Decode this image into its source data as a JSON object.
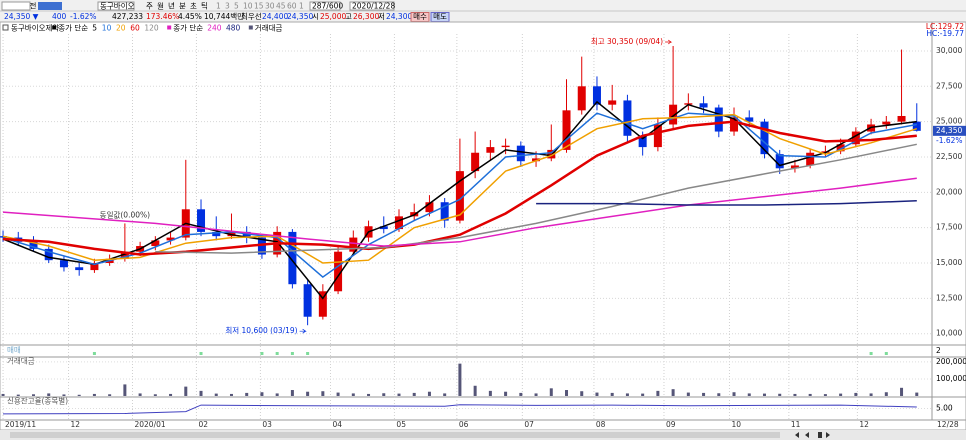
{
  "toolbar": {
    "row1": [
      "전",
      "동구바이오",
      "주",
      "월",
      "년",
      "분",
      "초",
      "틱",
      "1",
      "3",
      "5",
      "10",
      "15",
      "30",
      "45",
      "60",
      "1",
      "287/600",
      "2020/12/28"
    ],
    "row2": [
      "24,350 ▼",
      "400",
      "-1.62%",
      "427,233",
      "173.46%",
      "4.45%",
      "10,744백만",
      "최우선",
      "24,400",
      "24,350",
      "시",
      "25,000",
      "고",
      "26,300",
      "저",
      "24,300",
      "매수",
      "매도"
    ]
  },
  "chart_data": {
    "type": "candlestick",
    "title": "동구바이오제약",
    "legend_groups": [
      "종가 단순",
      "종가 단순"
    ],
    "volume_legend": "거래대금",
    "scale_labels": [
      "LC:129.72",
      "HC:-19.77"
    ],
    "up_color": "#e00000",
    "down_color": "#0030e0",
    "candles": [
      [
        16900,
        17300,
        16500,
        16800
      ],
      [
        16800,
        17200,
        16200,
        16500
      ],
      [
        16500,
        16900,
        15800,
        16000
      ],
      [
        16000,
        16300,
        15000,
        15200
      ],
      [
        15200,
        15500,
        14400,
        14700
      ],
      [
        14700,
        15000,
        14100,
        14500
      ],
      [
        14500,
        15300,
        14300,
        15000
      ],
      [
        15000,
        15600,
        14800,
        15300
      ],
      [
        15300,
        17800,
        15100,
        15800
      ],
      [
        15800,
        16500,
        15500,
        16200
      ],
      [
        16200,
        16900,
        15900,
        16600
      ],
      [
        16600,
        17200,
        16300,
        16800
      ],
      [
        16800,
        22300,
        16600,
        18800
      ],
      [
        18800,
        19500,
        16900,
        17200
      ],
      [
        17200,
        18300,
        16600,
        16900
      ],
      [
        16900,
        18500,
        16700,
        17200
      ],
      [
        17200,
        17600,
        16400,
        16800
      ],
      [
        16800,
        17000,
        15300,
        15600
      ],
      [
        15600,
        17600,
        15400,
        17200
      ],
      [
        17200,
        17400,
        13200,
        13500
      ],
      [
        13500,
        13800,
        10600,
        11200
      ],
      [
        11200,
        13500,
        11000,
        13000
      ],
      [
        13000,
        16200,
        12800,
        15800
      ],
      [
        15800,
        17300,
        15500,
        16800
      ],
      [
        16800,
        18000,
        16500,
        17600
      ],
      [
        17600,
        18300,
        17100,
        17400
      ],
      [
        17400,
        18800,
        17200,
        18300
      ],
      [
        18300,
        19200,
        18000,
        18600
      ],
      [
        18600,
        19800,
        18300,
        19300
      ],
      [
        19300,
        19600,
        17500,
        18000
      ],
      [
        18000,
        23800,
        17800,
        21500
      ],
      [
        21500,
        24300,
        21000,
        22800
      ],
      [
        22800,
        23700,
        22300,
        23200
      ],
      [
        23200,
        23800,
        22700,
        23300
      ],
      [
        23300,
        23600,
        21800,
        22200
      ],
      [
        22200,
        22900,
        21800,
        22400
      ],
      [
        22400,
        24800,
        22200,
        23000
      ],
      [
        23000,
        28000,
        22800,
        25800
      ],
      [
        25800,
        29600,
        25500,
        27500
      ],
      [
        27500,
        28200,
        25800,
        26200
      ],
      [
        26200,
        27600,
        25800,
        26500
      ],
      [
        26500,
        26900,
        23500,
        24000
      ],
      [
        24000,
        24300,
        22600,
        23200
      ],
      [
        23200,
        25300,
        22900,
        24800
      ],
      [
        24800,
        30350,
        24500,
        26200
      ],
      [
        26200,
        27000,
        25800,
        26300
      ],
      [
        26300,
        26800,
        25600,
        26000
      ],
      [
        26000,
        26200,
        23900,
        24300
      ],
      [
        24300,
        26000,
        24000,
        25300
      ],
      [
        25300,
        25800,
        24600,
        25000
      ],
      [
        25000,
        25200,
        22400,
        22700
      ],
      [
        22700,
        23000,
        21300,
        21700
      ],
      [
        21700,
        22300,
        21400,
        21900
      ],
      [
        21900,
        23100,
        21700,
        22800
      ],
      [
        22800,
        23300,
        22500,
        22900
      ],
      [
        22900,
        23800,
        22700,
        23400
      ],
      [
        23400,
        24600,
        23200,
        24300
      ],
      [
        24300,
        25200,
        24100,
        24800
      ],
      [
        24800,
        25400,
        24500,
        25000
      ],
      [
        25000,
        30100,
        24800,
        25400
      ],
      [
        25000,
        26300,
        24300,
        24350
      ]
    ],
    "series": [
      {
        "name": "5",
        "color": "#000000",
        "x": [
          0,
          3,
          6,
          9,
          12,
          15,
          18,
          21,
          24,
          27,
          30,
          33,
          36,
          39,
          42,
          45,
          48,
          51,
          54,
          57,
          60
        ],
        "values": [
          16700,
          15400,
          14900,
          16000,
          17800,
          17000,
          16500,
          12500,
          17200,
          18400,
          20800,
          23000,
          22600,
          26400,
          23800,
          26200,
          25200,
          21900,
          22800,
          24600,
          25000
        ]
      },
      {
        "name": "10",
        "color": "#1e6fd9",
        "x": [
          0,
          3,
          6,
          9,
          12,
          15,
          18,
          21,
          24,
          27,
          30,
          33,
          36,
          39,
          42,
          45,
          48,
          51,
          54,
          57,
          60
        ],
        "values": [
          16800,
          15800,
          14900,
          15700,
          17000,
          17200,
          16800,
          14000,
          16300,
          18000,
          19500,
          22500,
          22800,
          25600,
          24500,
          25600,
          25400,
          22600,
          22500,
          24200,
          24800
        ]
      },
      {
        "name": "20",
        "color": "#f0a000",
        "x": [
          0,
          3,
          6,
          9,
          12,
          15,
          18,
          21,
          24,
          27,
          30,
          33,
          36,
          39,
          42,
          45,
          48,
          51,
          54,
          57,
          60
        ],
        "values": [
          16900,
          16200,
          15200,
          15400,
          16400,
          16800,
          16900,
          15000,
          15200,
          17500,
          18400,
          21500,
          22600,
          24500,
          25200,
          25300,
          25500,
          23800,
          22700,
          23500,
          24500
        ]
      },
      {
        "name": "60",
        "color": "#e00000",
        "width": 2.5,
        "x": [
          0,
          3,
          6,
          9,
          12,
          15,
          18,
          21,
          24,
          27,
          30,
          33,
          36,
          39,
          42,
          45,
          48,
          51,
          54,
          57,
          60
        ],
        "values": [
          16700,
          16500,
          16000,
          15600,
          15800,
          16100,
          16400,
          16300,
          16000,
          16300,
          17000,
          18500,
          20500,
          22600,
          24000,
          24700,
          25000,
          24200,
          23600,
          23700,
          24000
        ]
      },
      {
        "name": "120",
        "color": "#888888",
        "x": [
          10,
          15,
          20,
          25,
          30,
          35,
          40,
          45,
          50,
          55,
          60
        ],
        "values": [
          15800,
          15700,
          15900,
          16100,
          16800,
          17800,
          19000,
          20300,
          21300,
          22300,
          23400
        ]
      },
      {
        "name": "240",
        "color": "#e020c0",
        "group": 1,
        "x": [
          0,
          10,
          20,
          25,
          30,
          35,
          40,
          45,
          50,
          55,
          60
        ],
        "values": [
          18600,
          17800,
          16700,
          16200,
          16500,
          17500,
          18300,
          19100,
          19700,
          20300,
          21000
        ]
      },
      {
        "name": "480",
        "color": "#1a237e",
        "group": 1,
        "x": [
          35,
          40,
          45,
          50,
          55,
          60
        ],
        "values": [
          19200,
          19200,
          19100,
          19100,
          19200,
          19400
        ]
      }
    ],
    "annotations": [
      "최고 30,350 (09/04)",
      "최저 10,600 (03/19)",
      "동일값(0.00%)"
    ],
    "last_price": {
      "value": 24350,
      "label": "24,350",
      "change": "-1.62%"
    },
    "xlim": [
      -0.2,
      61
    ],
    "xticks": [
      {
        "value": 0,
        "label": "2019/11"
      },
      {
        "value": 4.3,
        "label": "12"
      },
      {
        "value": 8.5,
        "label": "2020/01"
      },
      {
        "value": 12.7,
        "label": "02"
      },
      {
        "value": 16.9,
        "label": "03"
      },
      {
        "value": 21.5,
        "label": "04"
      },
      {
        "value": 25.7,
        "label": "05"
      },
      {
        "value": 29.8,
        "label": "06"
      },
      {
        "value": 34.1,
        "label": "07"
      },
      {
        "value": 38.8,
        "label": "08"
      },
      {
        "value": 43.4,
        "label": "09"
      },
      {
        "value": 47.7,
        "label": "10"
      },
      {
        "value": 51.6,
        "label": "11"
      },
      {
        "value": 56.1,
        "label": "12"
      },
      {
        "value": 61.2,
        "label": "12/28"
      }
    ],
    "ylim": [
      9200,
      31200
    ],
    "yticks": [
      {
        "value": 10000,
        "label": "10,000"
      },
      {
        "value": 12500,
        "label": "12,500"
      },
      {
        "value": 15000,
        "label": "15,000"
      },
      {
        "value": 17500,
        "label": "17,500"
      },
      {
        "value": 20000,
        "label": "20,000"
      },
      {
        "value": 22500,
        "label": "22,500"
      },
      {
        "value": 25000,
        "label": "25,000"
      },
      {
        "value": 27500,
        "label": "27,500"
      },
      {
        "value": 30000,
        "label": "30,000"
      }
    ],
    "signals": {
      "title": "매매",
      "axis_label": "2",
      "color": "#7ddc9a",
      "x": [
        6,
        13,
        17,
        18,
        19,
        20,
        57,
        58
      ]
    },
    "volume": {
      "title": "거래대금",
      "color": "#555577",
      "ylim": [
        -6000,
        229000
      ],
      "yticks": [
        {
          "value": 100000,
          "label": "100,000"
        },
        {
          "value": 200000,
          "label": "200,000"
        }
      ],
      "values": [
        12000,
        8000,
        10000,
        15000,
        9000,
        7000,
        12000,
        10000,
        68000,
        15000,
        10000,
        12000,
        55000,
        30000,
        14000,
        12000,
        18000,
        22000,
        15000,
        35000,
        25000,
        28000,
        20000,
        15000,
        12000,
        16000,
        14000,
        18000,
        25000,
        15000,
        190000,
        60000,
        30000,
        25000,
        18000,
        15000,
        45000,
        35000,
        28000,
        20000,
        18000,
        15000,
        14000,
        30000,
        40000,
        20000,
        18000,
        16000,
        22000,
        15000,
        14000,
        13000,
        12000,
        12000,
        11000,
        14000,
        18000,
        15000,
        22000,
        48000,
        20000
      ]
    },
    "credit": {
      "title": "신용잔고율(종목별)",
      "color": "#4040c0",
      "ylim": [
        2,
        8
      ],
      "yticks": [
        {
          "value": 5,
          "label": "5.00"
        }
      ],
      "x": [
        0,
        8,
        12,
        13,
        20,
        29,
        30,
        35,
        40,
        45,
        50,
        55,
        60
      ],
      "values": [
        3.6,
        3.7,
        4.2,
        5.9,
        5.7,
        5.6,
        6.0,
        5.8,
        5.9,
        5.7,
        5.8,
        5.9,
        5.4
      ]
    }
  }
}
